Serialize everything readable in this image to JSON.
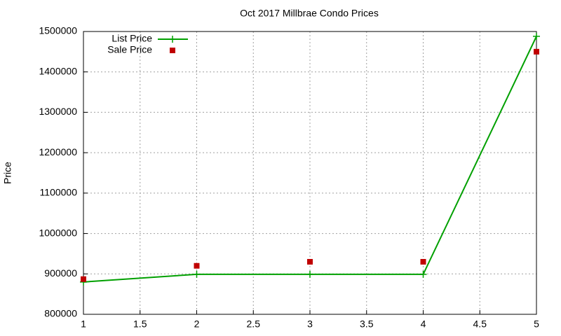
{
  "chart_data": {
    "type": "line",
    "title": "Oct 2017 Millbrae Condo Prices",
    "ylabel": "Price",
    "x": [
      1,
      2,
      3,
      4,
      5
    ],
    "series": [
      {
        "name": "List Price",
        "color": "#00a000",
        "mode": "lines+markers",
        "values": [
          880000,
          899000,
          899000,
          899000,
          1488000
        ]
      },
      {
        "name": "Sale Price",
        "color": "#c00000",
        "mode": "markers",
        "values": [
          887000,
          920000,
          930000,
          930000,
          1450000
        ]
      }
    ],
    "xlim": [
      1,
      5
    ],
    "xticks": [
      1,
      1.5,
      2,
      2.5,
      3,
      3.5,
      4,
      4.5,
      5
    ],
    "ylim": [
      800000,
      1500000
    ],
    "yticks": [
      800000,
      900000,
      1000000,
      1100000,
      1200000,
      1300000,
      1400000,
      1500000
    ],
    "grid": true,
    "legend": "top-left"
  }
}
